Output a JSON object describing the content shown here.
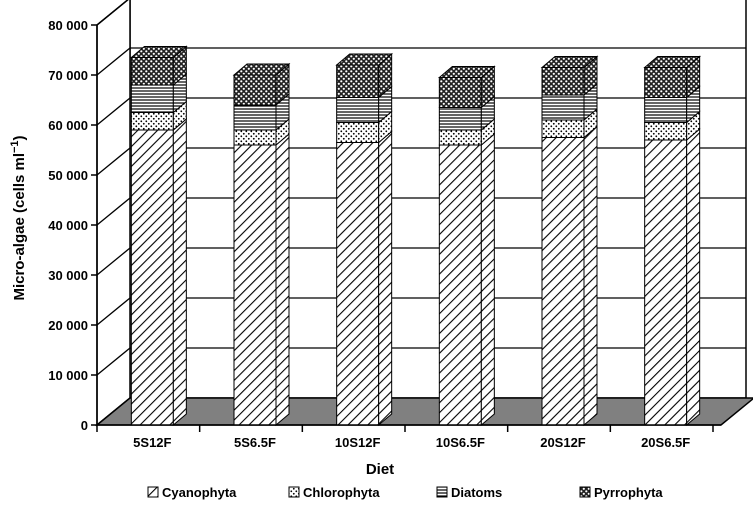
{
  "chart_data": {
    "type": "bar",
    "stacked": true,
    "three_d": true,
    "title": "",
    "xlabel": "Diet",
    "ylabel_main": "Micro-algae (cells ml",
    "ylabel_sup": "−1",
    "ylabel_close": ")",
    "ylim": [
      0,
      80000
    ],
    "yticks": [
      0,
      10000,
      20000,
      30000,
      40000,
      50000,
      60000,
      70000,
      80000
    ],
    "ytick_labels": [
      "0",
      "10 000",
      "20 000",
      "30 000",
      "40 000",
      "50 000",
      "60 000",
      "70 000",
      "80 000"
    ],
    "grid": true,
    "legend_position": "bottom",
    "categories": [
      "5S12F",
      "5S6.5F",
      "10S12F",
      "10S6.5F",
      "20S12F",
      "20S6.5F"
    ],
    "series": [
      {
        "name": "Cyanophyta",
        "pattern": "diagonal-hatch",
        "values": [
          59000,
          56000,
          56500,
          56000,
          57500,
          57000
        ]
      },
      {
        "name": "Chlorophyta",
        "pattern": "dots",
        "values": [
          3500,
          3000,
          4000,
          3000,
          3500,
          3500
        ]
      },
      {
        "name": "Diatoms",
        "pattern": "horizontal-lines",
        "values": [
          5500,
          5000,
          5000,
          4500,
          5000,
          5000
        ]
      },
      {
        "name": "Pyrrophyta",
        "pattern": "dense-dots",
        "values": [
          5500,
          6000,
          6500,
          6000,
          5500,
          6000
        ]
      }
    ],
    "colors": {
      "floor": "#808080",
      "side": "#ffffff",
      "stroke": "#000000"
    }
  }
}
